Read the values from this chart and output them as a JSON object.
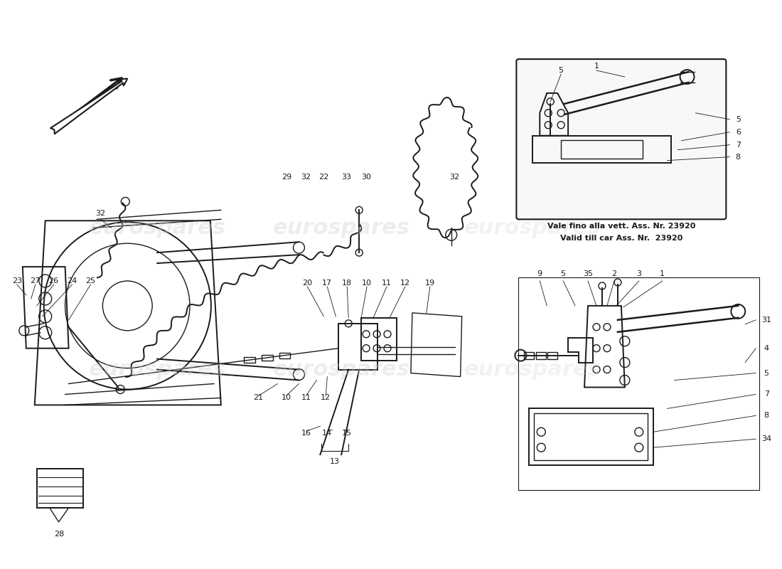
{
  "background_color": "#ffffff",
  "watermark_text": "eurospares",
  "fig_width": 11.0,
  "fig_height": 8.0,
  "dpi": 100,
  "note_text1": "Vale fino alla vett. Ass. Nr. 23920",
  "note_text2": "Valid till car Ass. Nr.  23920",
  "label_fontsize": 8,
  "note_fontsize": 8
}
